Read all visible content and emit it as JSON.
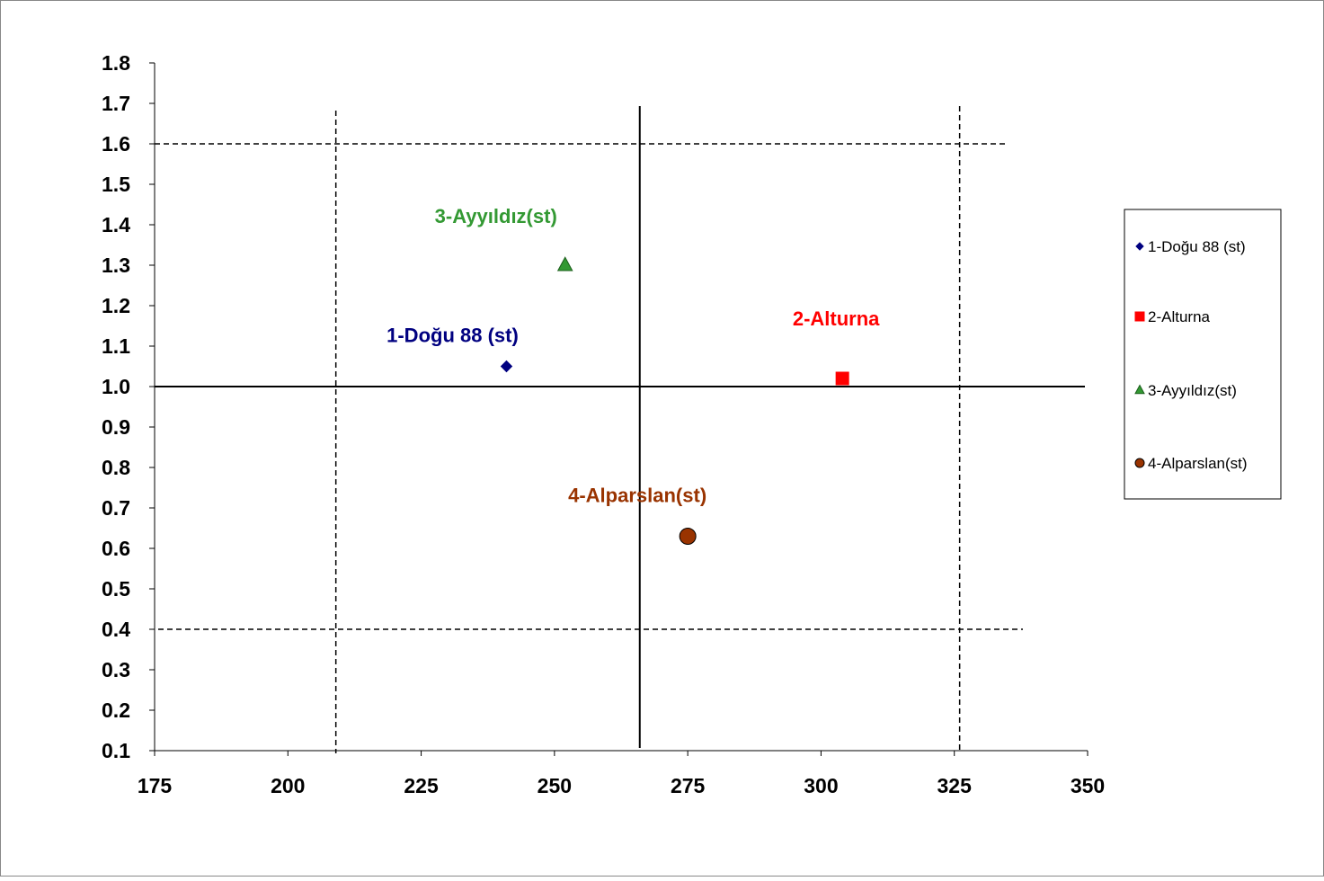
{
  "chart_data": {
    "type": "scatter",
    "title": "",
    "xlabel": "",
    "ylabel": "",
    "xlim": [
      175,
      350
    ],
    "ylim": [
      0.1,
      1.8
    ],
    "x_ticks": [
      "175",
      "200",
      "225",
      "250",
      "275",
      "300",
      "325",
      "350"
    ],
    "y_ticks": [
      "0.1",
      "0.2",
      "0.3",
      "0.4",
      "0.5",
      "0.6",
      "0.7",
      "0.8",
      "0.9",
      "1.0",
      "1.1",
      "1.2",
      "1.3",
      "1.4",
      "1.5",
      "1.6",
      "1.7",
      "1.8"
    ],
    "grid": false,
    "legend_position": "right",
    "series": [
      {
        "name": "1-Doğu 88 (st)",
        "label": "1-Doğu 88 (st)",
        "marker": "diamond",
        "color": "#000080",
        "x": 241,
        "y": 1.05
      },
      {
        "name": "2-Alturna",
        "label": "2-Alturna",
        "marker": "square",
        "color": "#ff0000",
        "x": 304,
        "y": 1.02
      },
      {
        "name": "3-Ayyıldız(st)",
        "label": "3-Ayyıldız(st)",
        "marker": "triangle",
        "color": "#339933",
        "x": 252,
        "y": 1.3
      },
      {
        "name": "4-Alparslan(st)",
        "label": "4-Alparslan(st)",
        "marker": "circle",
        "color": "#993300",
        "x": 275,
        "y": 0.63
      }
    ],
    "reference_lines": [
      {
        "orientation": "vertical",
        "x": 266,
        "style": "solid"
      },
      {
        "orientation": "horizontal",
        "y": 1.0,
        "style": "solid"
      },
      {
        "orientation": "vertical",
        "x": 209,
        "style": "dashed"
      },
      {
        "orientation": "vertical",
        "x": 326,
        "style": "dashed"
      },
      {
        "orientation": "horizontal",
        "y": 1.6,
        "style": "dashed"
      },
      {
        "orientation": "horizontal",
        "y": 0.4,
        "style": "dashed"
      }
    ]
  }
}
